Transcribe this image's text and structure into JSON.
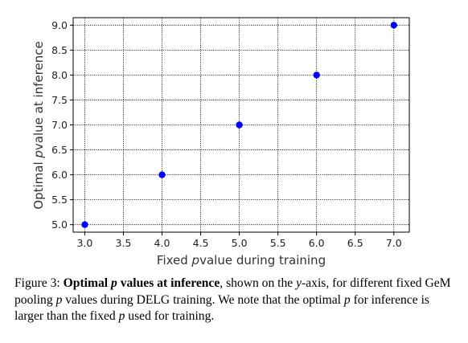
{
  "chart_data": {
    "type": "scatter",
    "x": [
      3.0,
      4.0,
      5.0,
      6.0,
      7.0
    ],
    "y": [
      5.0,
      6.0,
      7.0,
      8.0,
      9.0
    ],
    "xlabel_pre": "Fixed ",
    "xlabel_var": "p",
    "xlabel_post": "value during training",
    "ylabel_pre": "Optimal ",
    "ylabel_var": "p",
    "ylabel_post": "value at inference",
    "xlim": [
      2.85,
      7.2
    ],
    "ylim": [
      4.85,
      9.15
    ],
    "xticks": [
      "3.0",
      "3.5",
      "4.0",
      "4.5",
      "5.0",
      "5.5",
      "6.0",
      "6.5",
      "7.0"
    ],
    "yticks": [
      "5.0",
      "5.5",
      "6.0",
      "6.5",
      "7.0",
      "7.5",
      "8.0",
      "8.5",
      "9.0"
    ],
    "grid": true,
    "marker_color": "#0000ff"
  },
  "caption": {
    "fig": "Figure 3: ",
    "bold_pre": "Optimal ",
    "bold_var": "p",
    "bold_post": " values at inference",
    "t1": ", shown on the ",
    "v1": "y",
    "t2": "-axis, for different fixed GeM pooling ",
    "v2": "p",
    "t3": " values during DELG training. We note that the optimal ",
    "v3": "p",
    "t4": " for inference is larger than the fixed ",
    "v4": "p",
    "t5": " used for training."
  }
}
